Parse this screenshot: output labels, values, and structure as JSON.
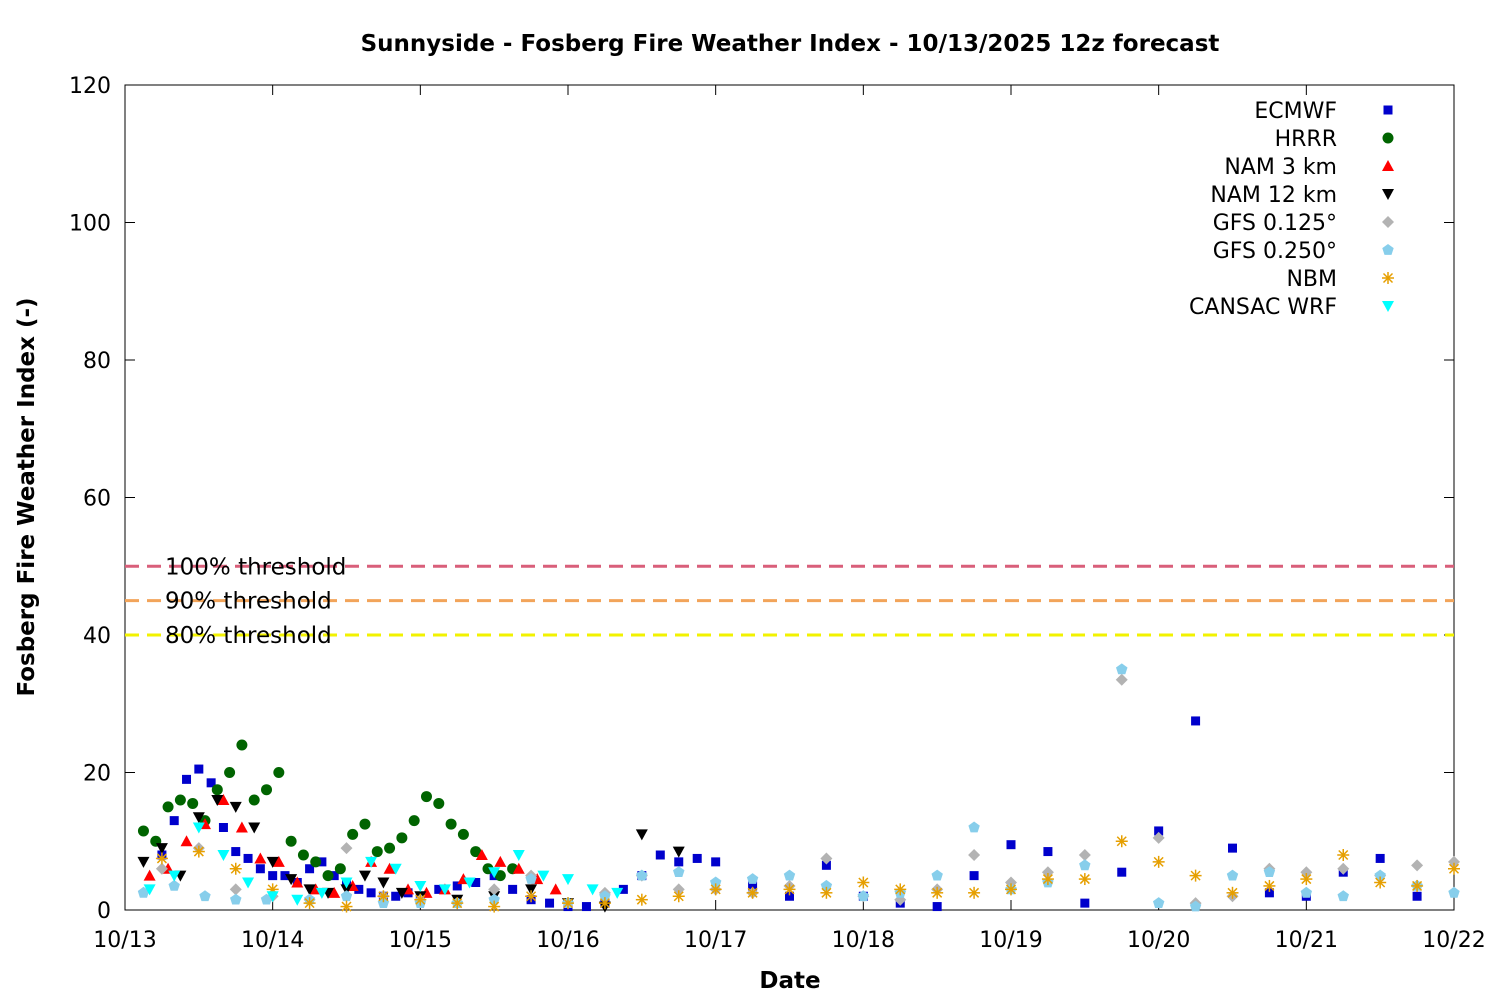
{
  "chart_data": {
    "type": "scatter",
    "title": "Sunnyside - Fosberg Fire Weather Index - 10/13/2025 12z forecast",
    "xlabel": "Date",
    "ylabel": "Fosberg Fire Weather Index (-)",
    "xlim": [
      "10/13 00:00",
      "10/22 00:00"
    ],
    "ylim": [
      0,
      120
    ],
    "x_ticks": [
      "10/13",
      "10/14",
      "10/15",
      "10/16",
      "10/17",
      "10/18",
      "10/19",
      "10/20",
      "10/21",
      "10/22"
    ],
    "y_ticks": [
      0,
      20,
      40,
      60,
      80,
      100,
      120
    ],
    "grid": false,
    "legend_position": "top-right",
    "thresholds": [
      {
        "label": "100% threshold",
        "value": 50,
        "color": "#d95f7a"
      },
      {
        "label": "90% threshold",
        "value": 45,
        "color": "#f2a45a"
      },
      {
        "label": "80% threshold",
        "value": 40,
        "color": "#f2f200"
      }
    ],
    "series": [
      {
        "name": "ECMWF",
        "color": "#0000cc",
        "marker": "square",
        "x": [
          "10/13 06:00",
          "10/13 08:00",
          "10/13 10:00",
          "10/13 12:00",
          "10/13 14:00",
          "10/13 16:00",
          "10/13 18:00",
          "10/13 20:00",
          "10/13 22:00",
          "10/14 00:00",
          "10/14 02:00",
          "10/14 04:00",
          "10/14 06:00",
          "10/14 08:00",
          "10/14 10:00",
          "10/14 12:00",
          "10/14 14:00",
          "10/14 16:00",
          "10/14 18:00",
          "10/14 20:00",
          "10/14 22:00",
          "10/15 00:00",
          "10/15 03:00",
          "10/15 06:00",
          "10/15 09:00",
          "10/15 12:00",
          "10/15 15:00",
          "10/15 18:00",
          "10/15 21:00",
          "10/16 00:00",
          "10/16 03:00",
          "10/16 06:00",
          "10/16 09:00",
          "10/16 12:00",
          "10/16 15:00",
          "10/16 18:00",
          "10/16 21:00",
          "10/17 00:00",
          "10/17 06:00",
          "10/17 12:00",
          "10/17 18:00",
          "10/18 00:00",
          "10/18 06:00",
          "10/18 12:00",
          "10/18 18:00",
          "10/19 00:00",
          "10/19 06:00",
          "10/19 12:00",
          "10/19 18:00",
          "10/20 00:00",
          "10/20 06:00",
          "10/20 12:00",
          "10/20 18:00",
          "10/21 00:00",
          "10/21 06:00",
          "10/21 12:00",
          "10/21 18:00"
        ],
        "y": [
          8,
          13,
          19,
          20.5,
          18.5,
          12,
          8.5,
          7.5,
          6,
          5,
          5,
          4,
          6,
          7,
          5,
          4,
          3,
          2.5,
          2,
          2,
          2.5,
          2,
          3,
          3.5,
          4,
          5,
          3,
          1.5,
          1,
          0.5,
          0.5,
          1,
          3,
          5,
          8,
          7,
          7.5,
          7,
          3.5,
          2,
          6.5,
          2,
          1,
          0.5,
          5,
          9.5,
          8.5,
          1,
          5.5,
          11.5,
          27.5,
          9,
          2.5,
          2,
          5.5,
          7.5,
          2
        ]
      },
      {
        "name": "HRRR",
        "color": "#006400",
        "marker": "circle",
        "x": [
          "10/13 03:00",
          "10/13 05:00",
          "10/13 07:00",
          "10/13 09:00",
          "10/13 11:00",
          "10/13 13:00",
          "10/13 15:00",
          "10/13 17:00",
          "10/13 19:00",
          "10/13 21:00",
          "10/13 23:00",
          "10/14 01:00",
          "10/14 03:00",
          "10/14 05:00",
          "10/14 07:00",
          "10/14 09:00",
          "10/14 11:00",
          "10/14 13:00",
          "10/14 15:00",
          "10/14 17:00",
          "10/14 19:00",
          "10/14 21:00",
          "10/14 23:00",
          "10/15 01:00",
          "10/15 03:00",
          "10/15 05:00",
          "10/15 07:00",
          "10/15 09:00",
          "10/15 11:00",
          "10/15 13:00",
          "10/15 15:00"
        ],
        "y": [
          11.5,
          10,
          15,
          16,
          15.5,
          13,
          17.5,
          20,
          24,
          16,
          17.5,
          20,
          10,
          8,
          7,
          5,
          6,
          11,
          12.5,
          8.5,
          9,
          10.5,
          13,
          16.5,
          15.5,
          12.5,
          11,
          8.5,
          6,
          5,
          6
        ]
      },
      {
        "name": "NAM 3 km",
        "color": "#ff0000",
        "marker": "triangle-up",
        "x": [
          "10/13 04:00",
          "10/13 07:00",
          "10/13 10:00",
          "10/13 13:00",
          "10/13 16:00",
          "10/13 19:00",
          "10/13 22:00",
          "10/14 01:00",
          "10/14 04:00",
          "10/14 07:00",
          "10/14 10:00",
          "10/14 13:00",
          "10/14 16:00",
          "10/14 19:00",
          "10/14 22:00",
          "10/15 01:00",
          "10/15 04:00",
          "10/15 07:00",
          "10/15 10:00",
          "10/15 13:00",
          "10/15 16:00",
          "10/15 19:00",
          "10/15 22:00"
        ],
        "y": [
          5,
          6,
          10,
          12.5,
          16,
          12,
          7.5,
          7,
          4,
          3,
          2.5,
          3.5,
          7,
          6,
          3,
          2.5,
          3,
          4.5,
          8,
          7,
          6,
          4.5,
          3
        ]
      },
      {
        "name": "NAM 12 km",
        "color": "#000000",
        "marker": "triangle-down",
        "x": [
          "10/13 03:00",
          "10/13 06:00",
          "10/13 09:00",
          "10/13 12:00",
          "10/13 15:00",
          "10/13 18:00",
          "10/13 21:00",
          "10/14 00:00",
          "10/14 03:00",
          "10/14 06:00",
          "10/14 09:00",
          "10/14 12:00",
          "10/14 15:00",
          "10/14 18:00",
          "10/14 21:00",
          "10/15 00:00",
          "10/15 06:00",
          "10/15 12:00",
          "10/15 18:00",
          "10/16 00:00",
          "10/16 06:00",
          "10/16 12:00",
          "10/16 18:00"
        ],
        "y": [
          7,
          9,
          5,
          13.5,
          16,
          15,
          12,
          7,
          4.5,
          3,
          2.5,
          3,
          5,
          4,
          2.5,
          2,
          1.5,
          2,
          3,
          1,
          0.5,
          11,
          8.5
        ]
      },
      {
        "name": "GFS 0.125°",
        "color": "#b3b3b3",
        "marker": "diamond",
        "x": [
          "10/13 06:00",
          "10/13 12:00",
          "10/13 18:00",
          "10/14 00:00",
          "10/14 06:00",
          "10/14 12:00",
          "10/14 18:00",
          "10/15 00:00",
          "10/15 06:00",
          "10/15 12:00",
          "10/15 18:00",
          "10/16 00:00",
          "10/16 06:00",
          "10/16 12:00",
          "10/16 18:00",
          "10/17 00:00",
          "10/17 06:00",
          "10/17 12:00",
          "10/17 18:00",
          "10/18 00:00",
          "10/18 06:00",
          "10/18 12:00",
          "10/18 18:00",
          "10/19 00:00",
          "10/19 06:00",
          "10/19 12:00",
          "10/19 18:00",
          "10/20 00:00",
          "10/20 06:00",
          "10/20 12:00",
          "10/20 18:00",
          "10/21 00:00",
          "10/21 06:00",
          "10/21 12:00",
          "10/21 18:00",
          "10/22 00:00"
        ],
        "y": [
          6,
          9,
          3,
          2,
          1.5,
          9,
          2,
          1.5,
          1,
          3,
          5,
          1,
          2.5,
          5,
          3,
          3,
          2.5,
          3.5,
          7.5,
          2,
          1.5,
          3,
          8,
          4,
          5.5,
          8,
          33.5,
          10.5,
          1,
          2,
          6,
          5.5,
          6,
          5,
          6.5,
          7
        ]
      },
      {
        "name": "GFS 0.250°",
        "color": "#87ceeb",
        "marker": "pentagon",
        "x": [
          "10/13 03:00",
          "10/13 08:00",
          "10/13 13:00",
          "10/13 18:00",
          "10/13 23:00",
          "10/14 06:00",
          "10/14 12:00",
          "10/14 18:00",
          "10/15 00:00",
          "10/15 06:00",
          "10/15 12:00",
          "10/15 18:00",
          "10/16 00:00",
          "10/16 06:00",
          "10/16 12:00",
          "10/16 18:00",
          "10/17 00:00",
          "10/17 06:00",
          "10/17 12:00",
          "10/17 18:00",
          "10/18 00:00",
          "10/18 06:00",
          "10/18 12:00",
          "10/18 18:00",
          "10/19 00:00",
          "10/19 06:00",
          "10/19 12:00",
          "10/19 18:00",
          "10/20 00:00",
          "10/20 06:00",
          "10/20 12:00",
          "10/20 18:00",
          "10/21 00:00",
          "10/21 06:00",
          "10/21 12:00",
          "10/21 18:00",
          "10/22 00:00"
        ],
        "y": [
          2.5,
          3.5,
          2,
          1.5,
          1.5,
          1.5,
          2,
          1,
          1,
          1,
          1.5,
          4.5,
          1,
          2,
          5,
          5.5,
          4,
          4.5,
          5,
          3.5,
          2,
          2.5,
          5,
          12,
          3,
          4,
          6.5,
          35,
          1,
          0.5,
          5,
          5.5,
          2.5,
          2,
          5,
          3.5,
          2.5
        ]
      },
      {
        "name": "NBM",
        "color": "#e69f00",
        "marker": "asterisk",
        "x": [
          "10/13 06:00",
          "10/13 12:00",
          "10/13 18:00",
          "10/14 00:00",
          "10/14 06:00",
          "10/14 12:00",
          "10/14 18:00",
          "10/15 00:00",
          "10/15 06:00",
          "10/15 12:00",
          "10/15 18:00",
          "10/16 00:00",
          "10/16 06:00",
          "10/16 12:00",
          "10/16 18:00",
          "10/17 00:00",
          "10/17 06:00",
          "10/17 12:00",
          "10/17 18:00",
          "10/18 00:00",
          "10/18 06:00",
          "10/18 12:00",
          "10/18 18:00",
          "10/19 00:00",
          "10/19 06:00",
          "10/19 12:00",
          "10/19 18:00",
          "10/20 00:00",
          "10/20 06:00",
          "10/20 12:00",
          "10/20 18:00",
          "10/21 00:00",
          "10/21 06:00",
          "10/21 12:00",
          "10/21 18:00",
          "10/22 00:00"
        ],
        "y": [
          7.5,
          8.5,
          6,
          3,
          1,
          0.5,
          2,
          1.5,
          1,
          0.5,
          2,
          1,
          1,
          1.5,
          2,
          3,
          2.5,
          3,
          2.5,
          4,
          3,
          2.5,
          2.5,
          3,
          4.5,
          4.5,
          10,
          7,
          5,
          2.5,
          3.5,
          4.5,
          8,
          4,
          3.5,
          6
        ]
      },
      {
        "name": "CANSAC WRF",
        "color": "#00ffff",
        "marker": "triangle-down",
        "x": [
          "10/13 04:00",
          "10/13 08:00",
          "10/13 12:00",
          "10/13 16:00",
          "10/13 20:00",
          "10/14 00:00",
          "10/14 04:00",
          "10/14 08:00",
          "10/14 12:00",
          "10/14 16:00",
          "10/14 20:00",
          "10/15 00:00",
          "10/15 04:00",
          "10/15 08:00",
          "10/15 12:00",
          "10/15 16:00",
          "10/15 20:00",
          "10/16 00:00",
          "10/16 04:00",
          "10/16 08:00"
        ],
        "y": [
          3,
          5,
          12,
          8,
          4,
          2,
          1.5,
          2.5,
          4,
          7,
          6,
          3.5,
          3,
          4,
          5.5,
          8,
          5,
          4.5,
          3,
          2.5
        ]
      }
    ]
  }
}
